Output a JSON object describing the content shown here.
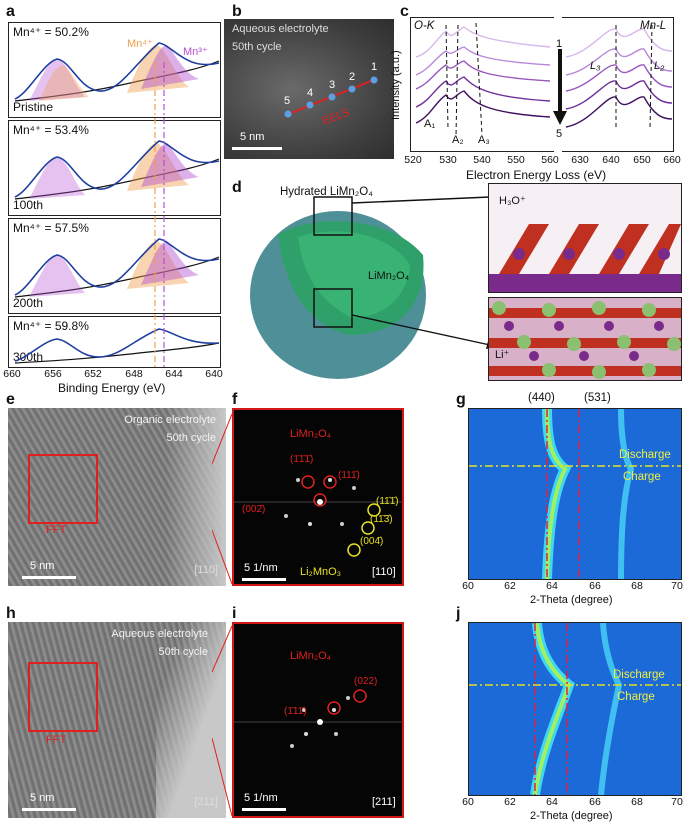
{
  "panels": {
    "a": "a",
    "b": "b",
    "c": "c",
    "d": "d",
    "e": "e",
    "f": "f",
    "g": "g",
    "h": "h",
    "i": "i",
    "j": "j"
  },
  "xps": {
    "mn4_label": "Mn⁴⁺",
    "mn3_label": "Mn³⁺",
    "rows": [
      {
        "mn": "Mn⁴⁺ = 50.2%",
        "cycle": "Pristine"
      },
      {
        "mn": "Mn⁴⁺ = 53.4%",
        "cycle": "100th"
      },
      {
        "mn": "Mn⁴⁺ = 57.5%",
        "cycle": "200th"
      },
      {
        "mn": "Mn⁴⁺ = 59.8%",
        "cycle": "300th"
      }
    ],
    "xticks": [
      "660",
      "656",
      "652",
      "648",
      "644",
      "640"
    ],
    "xlabel": "Binding Energy (eV)"
  },
  "panel_b": {
    "line1": "Aqueous electrolyte",
    "line2": "50th cycle",
    "points": [
      "1",
      "2",
      "3",
      "4",
      "5"
    ],
    "tag": "EELS",
    "scale": "5 nm"
  },
  "panel_c": {
    "ok": "O-K",
    "mnl": "Mn-L",
    "ylabel": "Intensity (a.u.)",
    "xlabel": "Electron Energy Loss (eV)",
    "xticks": [
      "520",
      "530",
      "540",
      "550",
      "560",
      "630",
      "640",
      "650",
      "660"
    ],
    "top_num": "1",
    "bottom_num": "5",
    "a1": "A₁",
    "a2": "A₂",
    "a3": "A₃",
    "l3": "L₃",
    "l2": "L₂"
  },
  "panel_d": {
    "hydrated": "Hydrated LiMn₂O₄",
    "core": "LiMn₂O₄",
    "h3o": "H₃O⁺",
    "li": "Li⁺"
  },
  "panel_e": {
    "line1": "Organic electrolyte",
    "line2": "50th cycle",
    "fft": "FFT",
    "scale": "5 nm",
    "zone": "[110]"
  },
  "panel_f": {
    "phase1": "LiMn₂O₄",
    "phase2": "Li₂MnO₃",
    "scale": "5 1/nm",
    "zone": "[110]",
    "red_spots": [
      "(1̄1̄1̄)",
      "(111̄)",
      "(002̄)"
    ],
    "yellow_spots": [
      "(11̄1̄)",
      "(11̄3̄)",
      "(004̄)"
    ]
  },
  "panel_g": {
    "peak1": "(440)",
    "peak2": "(531)",
    "discharge": "Discharge",
    "charge": "Charge",
    "xticks": [
      "60",
      "62",
      "64",
      "66",
      "68",
      "70"
    ],
    "xlabel": "2-Theta (degree)"
  },
  "panel_h": {
    "line1": "Aqueous electrolyte",
    "line2": "50th cycle",
    "fft": "FFT",
    "scale": "5 nm",
    "zone": "[211]"
  },
  "panel_i": {
    "phase1": "LiMn₂O₄",
    "scale": "5 1/nm",
    "zone": "[211]",
    "red_spots": [
      "(1̄11̄)",
      "(022)"
    ]
  },
  "panel_j": {
    "discharge": "Discharge",
    "charge": "Charge",
    "xticks": [
      "60",
      "62",
      "64",
      "66",
      "68",
      "70"
    ],
    "xlabel": "2-Theta (degree)"
  },
  "colors": {
    "mn4": "#f0a050",
    "mn3": "#b44fd0",
    "fit": "#1f3fa0",
    "red": "#e02020",
    "yellow": "#e8e020"
  }
}
